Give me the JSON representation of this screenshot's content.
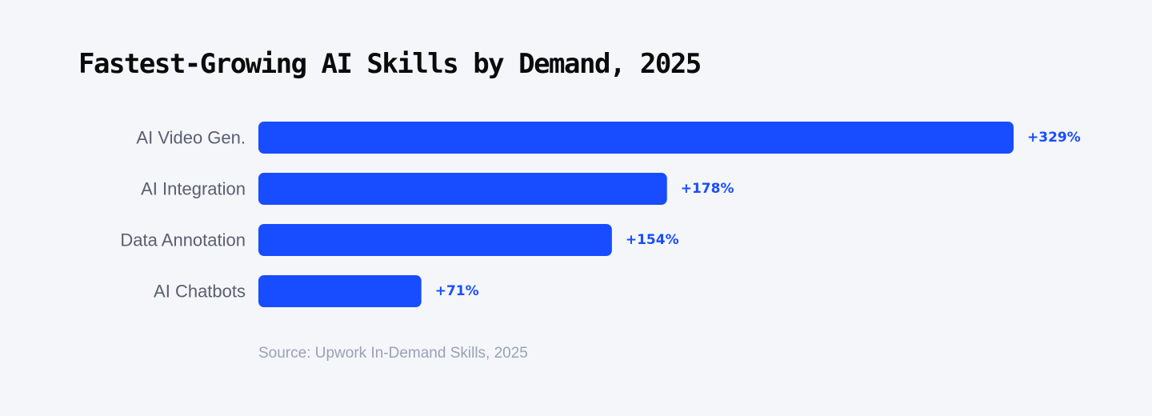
{
  "chart_data": {
    "type": "bar",
    "orientation": "horizontal",
    "title": "Fastest-Growing AI Skills by Demand, 2025",
    "categories": [
      "AI Video Gen.",
      "AI Integration",
      "Data Annotation",
      "AI Chatbots"
    ],
    "values": [
      329,
      178,
      154,
      71
    ],
    "value_labels": [
      "+329%",
      "+178%",
      "+154%",
      "+71%"
    ],
    "xlim": [
      0,
      329
    ],
    "grid": false,
    "legend": "none",
    "source": "Source: Upwork In-Demand Skills, 2025"
  },
  "colors": {
    "background": "#f4f6fa",
    "bar": "#184cff",
    "value_label": "#1a4dff",
    "category_label": "#5a5f70",
    "title": "#0b0b0b",
    "source": "#9aa1b6"
  }
}
